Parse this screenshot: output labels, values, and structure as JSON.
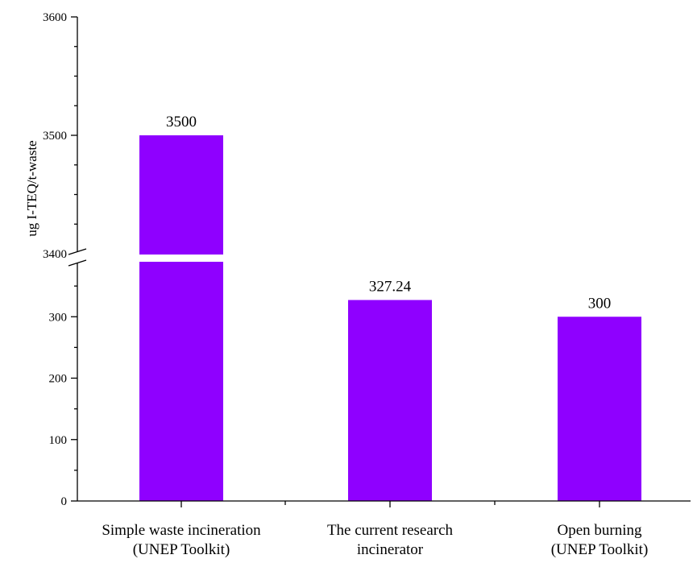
{
  "chart_data": {
    "type": "bar",
    "title": "",
    "xlabel": "",
    "ylabel": "ug I-TEQ/t-waste",
    "categories": [
      [
        "Simple waste incineration",
        "(UNEP Toolkit)"
      ],
      [
        "The current research",
        "incinerator"
      ],
      [
        "Open burning",
        "(UNEP Toolkit)"
      ]
    ],
    "values": [
      3500,
      327.24,
      300
    ],
    "data_labels": [
      "3500",
      "327.24",
      "300"
    ],
    "bar_color": "#8f00ff",
    "y_axis": {
      "broken": true,
      "lower_range": [
        0,
        400
      ],
      "upper_range": [
        3400,
        3600
      ],
      "lower_ticks": [
        "0",
        "100",
        "200",
        "300"
      ],
      "upper_ticks": [
        "3400",
        "3500",
        "3600"
      ]
    },
    "grid": false,
    "legend": "none"
  }
}
